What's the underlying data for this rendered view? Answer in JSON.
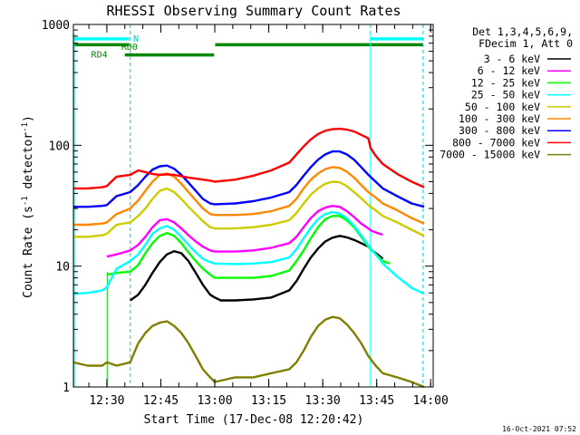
{
  "chart_data": {
    "type": "line",
    "title": "RHESSI Observing Summary Count Rates",
    "xlabel": "Start Time (17-Dec-08 12:20:42)",
    "ylabel_main": "Count Rate (s",
    "ylabel_sup1": "-1",
    "ylabel_mid": " detector",
    "ylabel_sup2": "-1",
    "ylabel_end": ")",
    "y_scale": "log",
    "ylim": [
      1,
      1000
    ],
    "xlim_minutes": [
      0,
      100
    ],
    "x_ticks": [
      {
        "t": 9.3,
        "label": "12:30"
      },
      {
        "t": 24.3,
        "label": "12:45"
      },
      {
        "t": 39.3,
        "label": "13:00"
      },
      {
        "t": 54.3,
        "label": "13:15"
      },
      {
        "t": 69.3,
        "label": "13:30"
      },
      {
        "t": 84.3,
        "label": "13:45"
      },
      {
        "t": 99.3,
        "label": "14:00"
      }
    ],
    "y_ticks": [
      {
        "v": 1,
        "label": "1"
      },
      {
        "v": 10,
        "label": "10"
      },
      {
        "v": 100,
        "label": "100"
      },
      {
        "v": 1000,
        "label": "1000"
      }
    ],
    "legend_header": [
      "Det 1,3,4,5,6,9,",
      "FDecim 1, Att 0"
    ],
    "legend_placement": "right",
    "timestamp": "16-Oct-2021 07:52",
    "night_boundaries": [
      15.8,
      82.6,
      97.2
    ],
    "saa_line": [
      9.4,
      82.6
    ],
    "annotations": [
      {
        "label": "N",
        "t": 17.4,
        "v": 760
      },
      {
        "label": "RD0",
        "t": 15.6,
        "v": 650
      },
      {
        "label": "RD4",
        "t": 7.2,
        "v": 560
      }
    ],
    "flags": [
      {
        "name": "cyan-upper",
        "color": "#00ffff",
        "segments": [
          [
            0,
            15.5
          ],
          [
            82.6,
            97.2
          ]
        ],
        "v": 760
      },
      {
        "name": "green-rd0",
        "color": "#008800",
        "segments": [
          [
            0,
            15.5
          ],
          [
            39.4,
            97.2
          ]
        ],
        "v": 680
      },
      {
        "name": "green-rd4",
        "color": "#008800",
        "segments": [
          [
            14.3,
            39.1
          ]
        ],
        "v": 560
      }
    ],
    "series": [
      {
        "name": "3 - 6 keV",
        "color": "#000000",
        "x": [
          15.8,
          18,
          20,
          22,
          24,
          26,
          28,
          30,
          32,
          34,
          36,
          38,
          39.3,
          41,
          45,
          50,
          55,
          60,
          62,
          64,
          66,
          68,
          70,
          72,
          74,
          76,
          78,
          80,
          82,
          83,
          84.5,
          86
        ],
        "y": [
          5.2,
          5.8,
          7.0,
          8.8,
          10.8,
          12.5,
          13.3,
          12.8,
          11.0,
          8.8,
          7.0,
          5.8,
          5.5,
          5.2,
          5.2,
          5.3,
          5.5,
          6.3,
          7.5,
          9.5,
          11.8,
          14.0,
          16.0,
          17.2,
          17.8,
          17.3,
          16.5,
          15.5,
          14.5,
          13.5,
          12.5,
          11.5
        ]
      },
      {
        "name": "6 - 12 keV",
        "color": "#ff00ff",
        "x": [
          9.3,
          12,
          14,
          15.8,
          18,
          20,
          22,
          24,
          26,
          28,
          30,
          32,
          34,
          36,
          38,
          39.3,
          45,
          50,
          55,
          60,
          62,
          64,
          66,
          68,
          70,
          72,
          74,
          76,
          78,
          80,
          82,
          83,
          84.5,
          86
        ],
        "y": [
          12,
          12.5,
          13,
          13.5,
          15,
          17.5,
          21,
          24,
          24.5,
          23,
          20.5,
          18,
          16,
          14.5,
          13.5,
          13.2,
          13.2,
          13.5,
          14.2,
          15.5,
          17.5,
          21,
          25,
          28.5,
          30.5,
          31.5,
          31,
          28.5,
          25.5,
          22.5,
          20.5,
          19.5,
          18.8,
          18.2
        ]
      },
      {
        "name": "12 - 25 keV",
        "color": "#00ff00",
        "x": [
          9.4,
          12,
          15.8,
          18,
          20,
          22,
          24,
          26,
          28,
          30,
          32,
          34,
          36,
          38,
          39.3,
          45,
          50,
          55,
          60,
          62,
          64,
          66,
          68,
          70,
          72,
          74,
          76,
          78,
          80,
          82,
          84,
          86,
          88
        ],
        "y": [
          8.5,
          8.8,
          9.0,
          10.2,
          12.8,
          15.5,
          17.8,
          18.8,
          17.8,
          15.5,
          13.0,
          11.0,
          9.5,
          8.5,
          8.0,
          8.0,
          8.0,
          8.3,
          9.2,
          11.0,
          13.5,
          17.0,
          21.0,
          24.5,
          26.0,
          26.0,
          24.0,
          21.0,
          17.5,
          14.5,
          12.5,
          11.0,
          10.5
        ]
      },
      {
        "name": "25 - 50 keV",
        "color": "#00ffff",
        "x": [
          0,
          4,
          8,
          9.3,
          12,
          15.8,
          18,
          20,
          22,
          24,
          26,
          28,
          30,
          32,
          34,
          36,
          38,
          39.3,
          45,
          50,
          55,
          60,
          62,
          64,
          66,
          68,
          70,
          72,
          74,
          76,
          78,
          80,
          82,
          84,
          86,
          90,
          94,
          97.5
        ],
        "y": [
          5.9,
          6.0,
          6.3,
          6.7,
          9.5,
          11.0,
          12.5,
          15.0,
          18.5,
          20.5,
          21.5,
          20.0,
          17.5,
          15.0,
          13.0,
          11.5,
          10.8,
          10.5,
          10.4,
          10.5,
          10.8,
          11.8,
          13.8,
          17.0,
          20.8,
          24.5,
          27.0,
          28.0,
          27.2,
          25.0,
          21.5,
          18.0,
          14.8,
          12.5,
          10.5,
          8.2,
          6.6,
          5.9
        ]
      },
      {
        "name": "50 - 100 keV",
        "color": "#cccc00",
        "x": [
          0,
          4,
          8,
          9.3,
          12,
          15.8,
          18,
          20,
          22,
          24,
          26,
          28,
          30,
          32,
          34,
          36,
          38,
          39.3,
          45,
          50,
          55,
          60,
          62,
          64,
          66,
          68,
          70,
          72,
          74,
          76,
          78,
          80,
          82,
          84,
          86,
          90,
          94,
          97.5
        ],
        "y": [
          17.5,
          17.5,
          18,
          18.5,
          22,
          23,
          26,
          30,
          36,
          42,
          44,
          41,
          36,
          31,
          27,
          23.5,
          21,
          20.5,
          20.5,
          21,
          22,
          24,
          27.5,
          33,
          39,
          44,
          48,
          50,
          49.5,
          46,
          41,
          36.5,
          32,
          29,
          26,
          23,
          20,
          17.8
        ]
      },
      {
        "name": "100 - 300 keV",
        "color": "#ff8800",
        "x": [
          0,
          4,
          8,
          9.3,
          12,
          15.8,
          18,
          20,
          22,
          24,
          26,
          28,
          30,
          32,
          34,
          36,
          38,
          39.3,
          45,
          50,
          55,
          60,
          62,
          64,
          66,
          68,
          70,
          72,
          74,
          76,
          78,
          80,
          82,
          84,
          86,
          90,
          94,
          97.5
        ],
        "y": [
          22,
          22,
          22.5,
          23,
          27,
          30,
          35,
          42,
          50,
          57,
          58.5,
          55,
          48,
          41,
          35,
          30,
          27,
          26.5,
          26.5,
          27,
          28.5,
          31.5,
          36,
          44,
          52,
          58.5,
          63.5,
          66,
          65,
          60.5,
          54,
          47,
          41,
          37,
          33,
          29,
          25,
          22.5
        ]
      },
      {
        "name": "300 - 800 keV",
        "color": "#0000ff",
        "x": [
          0,
          4,
          8,
          9.3,
          12,
          15.8,
          18,
          20,
          22,
          24,
          26,
          28,
          30,
          32,
          34,
          36,
          38,
          39.3,
          45,
          50,
          55,
          60,
          62,
          64,
          66,
          68,
          70,
          72,
          74,
          76,
          78,
          80,
          82,
          84,
          86,
          90,
          94,
          97.5
        ],
        "y": [
          31,
          31,
          31.5,
          32,
          38,
          41,
          47,
          55,
          63,
          67,
          68,
          64,
          57,
          49,
          42,
          36,
          33,
          32.5,
          33,
          34.5,
          37,
          41,
          47,
          56,
          66,
          76,
          84,
          89,
          89,
          84,
          76,
          66,
          57,
          50,
          44,
          38,
          33,
          31
        ]
      },
      {
        "name": "800 - 7000 keV",
        "color": "#ff0000",
        "x": [
          0,
          4,
          8,
          9.3,
          12,
          15.8,
          18,
          20,
          22,
          24,
          26,
          28,
          30,
          32,
          34,
          36,
          38,
          39.3,
          45,
          50,
          55,
          60,
          62,
          64,
          66,
          68,
          70,
          72,
          74,
          76,
          78,
          80,
          82,
          82.6,
          84,
          86,
          90,
          94,
          97.5
        ],
        "y": [
          44,
          44,
          45,
          46,
          55,
          57,
          62,
          60,
          58,
          57,
          57.5,
          57,
          55.5,
          54,
          53,
          52,
          51,
          50,
          52,
          56,
          62,
          72,
          84,
          98,
          112,
          124,
          132,
          136,
          137,
          135,
          130,
          122,
          114,
          95,
          82,
          70,
          58,
          50,
          45
        ]
      },
      {
        "name": "7000 - 15000 keV",
        "color": "#808000",
        "x": [
          0,
          4,
          8,
          9.3,
          12,
          15.8,
          18,
          20,
          22,
          24,
          26,
          28,
          30,
          32,
          34,
          36,
          38,
          39.3,
          45,
          50,
          55,
          60,
          62,
          64,
          66,
          68,
          70,
          72,
          74,
          76,
          78,
          80,
          82,
          84,
          86,
          90,
          94,
          97.5
        ],
        "y": [
          1.6,
          1.5,
          1.5,
          1.6,
          1.5,
          1.6,
          2.3,
          2.8,
          3.2,
          3.4,
          3.5,
          3.2,
          2.8,
          2.3,
          1.8,
          1.4,
          1.2,
          1.1,
          1.2,
          1.2,
          1.3,
          1.4,
          1.6,
          2.0,
          2.6,
          3.2,
          3.6,
          3.8,
          3.7,
          3.3,
          2.8,
          2.3,
          1.8,
          1.5,
          1.3,
          1.2,
          1.1,
          1.0
        ]
      }
    ]
  }
}
